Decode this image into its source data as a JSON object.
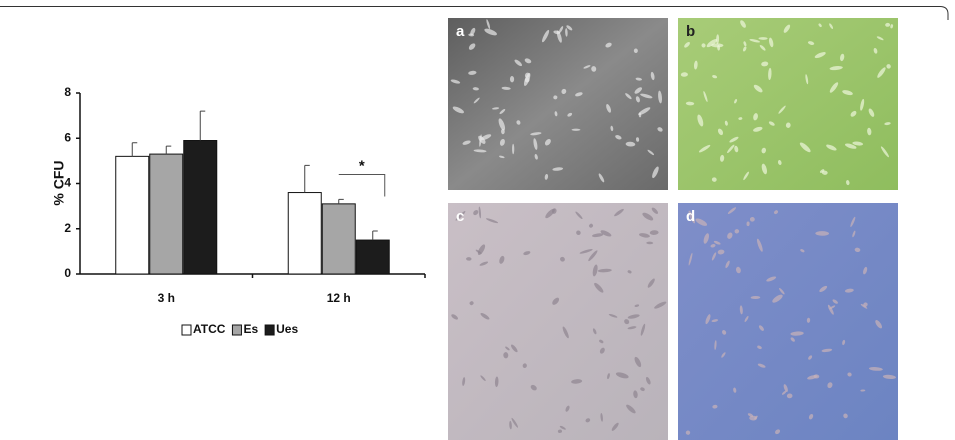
{
  "chart_data": {
    "type": "bar",
    "ylabel": "% CFU",
    "categories": [
      "3 h",
      "12 h"
    ],
    "series": [
      {
        "name": "ATCC",
        "color": "#ffffff",
        "values": [
          5.2,
          3.6
        ],
        "errors": [
          0.6,
          1.2
        ]
      },
      {
        "name": "Es",
        "color": "#a6a6a6",
        "values": [
          5.3,
          3.1
        ],
        "errors": [
          0.35,
          0.2
        ]
      },
      {
        "name": "Ues",
        "color": "#1c1c1c",
        "values": [
          5.9,
          1.5
        ],
        "errors": [
          1.3,
          0.4
        ]
      }
    ],
    "ylim": [
      0,
      8
    ],
    "yticks": [
      0,
      2,
      4,
      6,
      8
    ],
    "annotation": "*",
    "legend": "bottom"
  },
  "panels": {
    "labels": [
      "a",
      "b",
      "c",
      "d"
    ]
  }
}
